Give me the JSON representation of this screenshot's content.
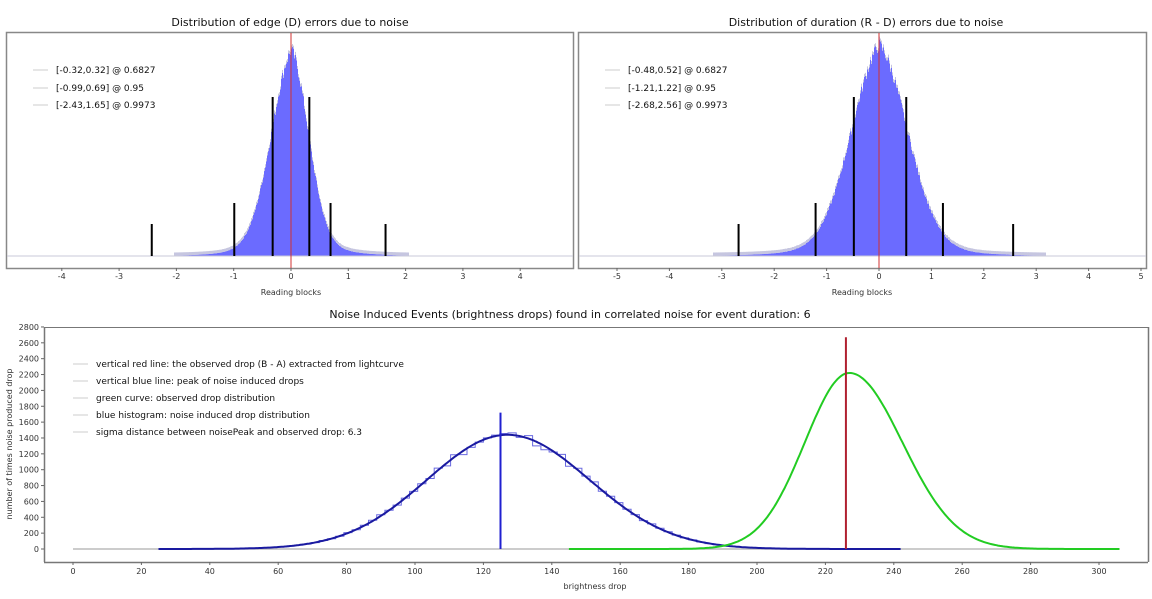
{
  "chart_data": [
    {
      "id": "edge",
      "type": "bar",
      "title": "Distribution of edge (D) errors due to noise",
      "xlabel": "Reading blocks",
      "ylabel": "",
      "xlim": [
        -4.9,
        4.9
      ],
      "xticks": [
        -4,
        -3,
        -2,
        -1,
        0,
        1,
        2,
        3,
        4
      ],
      "histogram": {
        "center": 0.0,
        "sigma_left": 0.36,
        "sigma_right": 0.3,
        "peak": 1.0,
        "color": "#5b5bff"
      },
      "center_line": {
        "x": 0,
        "color": "#d03030"
      },
      "intervals": [
        {
          "label": "[-0.32,0.32] @ 0.6827",
          "low": -0.32,
          "high": 0.32,
          "level": 0.6827
        },
        {
          "label": "[-0.99,0.69] @ 0.95",
          "low": -0.99,
          "high": 0.69,
          "level": 0.95
        },
        {
          "label": "[-2.43,1.65] @ 0.9973",
          "low": -2.43,
          "high": 1.65,
          "level": 0.9973
        }
      ]
    },
    {
      "id": "duration",
      "type": "bar",
      "title": "Distribution of duration (R - D) errors due to noise",
      "xlabel": "Reading blocks",
      "ylabel": "",
      "xlim": [
        -5.5,
        5.4
      ],
      "xticks": [
        -5,
        -4,
        -3,
        -2,
        -1,
        0,
        1,
        2,
        3,
        4,
        5
      ],
      "histogram": {
        "center": 0.0,
        "sigma_left": 0.55,
        "sigma_right": 0.55,
        "peak": 1.0,
        "color": "#5b5bff"
      },
      "center_line": {
        "x": 0,
        "color": "#d03030"
      },
      "intervals": [
        {
          "label": "[-0.48,0.52] @ 0.6827",
          "low": -0.48,
          "high": 0.52,
          "level": 0.6827
        },
        {
          "label": "[-1.21,1.22] @ 0.95",
          "low": -1.21,
          "high": 1.22,
          "level": 0.95
        },
        {
          "label": "[-2.68,2.56] @ 0.9973",
          "low": -2.68,
          "high": 2.56,
          "level": 0.9973
        }
      ]
    },
    {
      "id": "noise-events",
      "type": "line",
      "title": "Noise Induced Events (brightness drops) found in correlated noise for event duration: 6",
      "xlabel": "brightness drop",
      "ylabel": "number of times noise produced drop",
      "xlim": [
        -8,
        314
      ],
      "ylim": [
        -150,
        2800
      ],
      "xticks": [
        0,
        20,
        40,
        60,
        80,
        100,
        120,
        140,
        160,
        180,
        200,
        220,
        240,
        260,
        280,
        300
      ],
      "yticks": [
        0,
        200,
        400,
        600,
        800,
        1000,
        1200,
        1400,
        1600,
        1800,
        2000,
        2200,
        2400,
        2600,
        2800
      ],
      "legend": [
        "vertical red line: the observed drop (B - A) extracted from lightcurve",
        "vertical blue line: peak of noise induced drops",
        "green curve: observed drop distribution",
        "blue histogram: noise induced drop distribution",
        "sigma distance between noisePeak and observed drop: 6.3"
      ],
      "series": [
        {
          "name": "noise induced drop distribution (fit)",
          "color": "#1a1aa0",
          "peak_x": 127,
          "peak_y": 1440,
          "sigma_left": 23.5,
          "sigma_right": 24,
          "x_range": [
            25,
            242
          ]
        },
        {
          "name": "observed drop distribution",
          "color": "#22cc22",
          "peak_x": 227,
          "peak_y": 2220,
          "sigma_left": 13,
          "sigma_right": 15.5,
          "x_range": [
            145,
            306
          ]
        }
      ],
      "vertical_lines": [
        {
          "name": "peak of noise induced drops",
          "x": 125,
          "y_top": 1720,
          "color": "#2020d0"
        },
        {
          "name": "observed drop",
          "x": 226,
          "y_top": 2670,
          "color": "#b02030"
        }
      ],
      "baseline": {
        "y": 0,
        "x_range": [
          0,
          306
        ]
      }
    }
  ]
}
